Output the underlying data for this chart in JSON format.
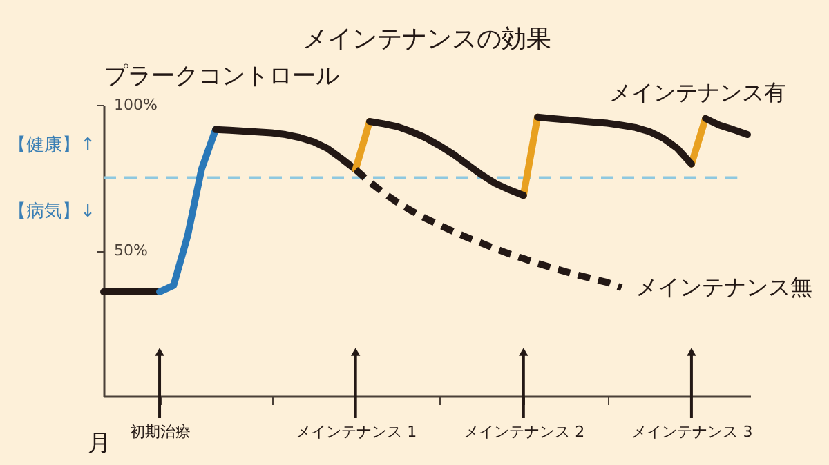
{
  "chart_data": {
    "type": "line",
    "title": "メインテナンスの効果",
    "xlabel": "月",
    "ylabel": "プラークコントロール",
    "categories": [
      null,
      null,
      null,
      null,
      "初期治療",
      null,
      null,
      null,
      null,
      null,
      null,
      null,
      null,
      null,
      null,
      null,
      null,
      null,
      "メインテナンス 1",
      null,
      null,
      null,
      null,
      null,
      null,
      null,
      null,
      null,
      null,
      null,
      "メインテナンス 2",
      null,
      null,
      null,
      null,
      null,
      null,
      null,
      null,
      null,
      null,
      null,
      "メインテナンス 3",
      null,
      null,
      null,
      null
    ],
    "ylim": [
      0,
      100
    ],
    "yticks": [
      {
        "value": 100,
        "label": "100%"
      },
      {
        "value": 50,
        "label": "50%"
      }
    ],
    "grid": false,
    "line_style": "solid",
    "series": [
      {
        "color": "#231815",
        "values": [
          35.8,
          35.8,
          35.8,
          35.8,
          35.8,
          null,
          null,
          null,
          null,
          null,
          null,
          null,
          null,
          null,
          null,
          null,
          null,
          null,
          null,
          null,
          null,
          null,
          null,
          null,
          null,
          null,
          null,
          null,
          null,
          null,
          null,
          null,
          null,
          null,
          null,
          null,
          null,
          null,
          null,
          null,
          null,
          null,
          null,
          null,
          null,
          null,
          null
        ]
      },
      {
        "color": "#2a78b8",
        "values": [
          null,
          null,
          null,
          null,
          35.8,
          38,
          55,
          78,
          91.5,
          null,
          null,
          null,
          null,
          null,
          null,
          null,
          null,
          null,
          null,
          null,
          null,
          null,
          null,
          null,
          null,
          null,
          null,
          null,
          null,
          null,
          null,
          null,
          null,
          null,
          null,
          null,
          null,
          null,
          null,
          null,
          null,
          null,
          null,
          null,
          null,
          null,
          null
        ]
      },
      {
        "color": "#231815",
        "values": [
          null,
          null,
          null,
          null,
          null,
          null,
          null,
          null,
          91.5,
          91.3,
          91,
          90.7,
          90.4,
          89.8,
          88.8,
          87.3,
          85,
          81.5,
          77.8,
          null,
          null,
          null,
          null,
          null,
          null,
          null,
          null,
          null,
          null,
          null,
          null,
          null,
          null,
          null,
          null,
          null,
          null,
          null,
          null,
          null,
          null,
          null,
          null,
          null,
          null,
          null,
          null
        ]
      },
      {
        "color": "#e8a020",
        "values": [
          null,
          null,
          null,
          null,
          null,
          null,
          null,
          null,
          null,
          null,
          null,
          null,
          null,
          null,
          null,
          null,
          null,
          null,
          77.8,
          94.3,
          null,
          null,
          null,
          null,
          null,
          null,
          null,
          null,
          null,
          null,
          68.9,
          95.8,
          null,
          null,
          null,
          null,
          null,
          null,
          null,
          null,
          null,
          null,
          79.7,
          95.3,
          null,
          null,
          null
        ]
      },
      {
        "color": "#231815",
        "values": [
          null,
          null,
          null,
          null,
          null,
          null,
          null,
          null,
          null,
          null,
          null,
          null,
          null,
          null,
          null,
          null,
          null,
          null,
          null,
          94.3,
          93.5,
          92.5,
          90.8,
          88.7,
          86,
          83,
          79.5,
          76,
          73,
          70.8,
          68.9,
          null,
          null,
          null,
          null,
          null,
          null,
          null,
          null,
          null,
          null,
          null,
          null,
          null,
          null,
          null,
          null
        ]
      },
      {
        "color": "#231815",
        "values": [
          null,
          null,
          null,
          null,
          null,
          null,
          null,
          null,
          null,
          null,
          null,
          null,
          null,
          null,
          null,
          null,
          null,
          null,
          null,
          null,
          null,
          null,
          null,
          null,
          null,
          null,
          null,
          null,
          null,
          null,
          null,
          95.8,
          95.3,
          94.9,
          94.5,
          94.1,
          93.7,
          93,
          92.2,
          90.8,
          88.5,
          85,
          79.7,
          null,
          null,
          null,
          null
        ]
      },
      {
        "name": "メインテナンス有",
        "color": "#231815",
        "values": [
          null,
          null,
          null,
          null,
          null,
          null,
          null,
          null,
          null,
          null,
          null,
          null,
          null,
          null,
          null,
          null,
          null,
          null,
          null,
          null,
          null,
          null,
          null,
          null,
          null,
          null,
          null,
          null,
          null,
          null,
          null,
          null,
          null,
          null,
          null,
          null,
          null,
          null,
          null,
          null,
          null,
          null,
          null,
          95.3,
          93,
          91.5,
          89.8
        ]
      },
      {
        "name": "メインテナンス無",
        "color": "#231815",
        "line_style": "dashed",
        "values": [
          null,
          null,
          null,
          null,
          null,
          null,
          null,
          null,
          null,
          null,
          null,
          null,
          null,
          null,
          null,
          null,
          null,
          null,
          77.8,
          73.5,
          69.8,
          66.5,
          63.6,
          61,
          58.7,
          56.5,
          54.4,
          52.5,
          50.6,
          48.8,
          47.2,
          45.6,
          44.1,
          42.7,
          41.4,
          40.2,
          39,
          37.2,
          null,
          null,
          null,
          null,
          null,
          null,
          null,
          null,
          null
        ]
      }
    ],
    "ref_lines": [
      {
        "axis": "y",
        "value": 75,
        "color": "#8ec8e0",
        "line_style": "dashed"
      }
    ],
    "annotations": [
      "【健康】↑",
      "【病気】↓"
    ]
  }
}
